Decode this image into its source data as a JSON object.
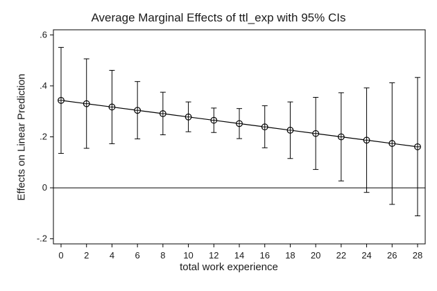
{
  "chart_data": {
    "type": "line",
    "title": "Average Marginal Effects of ttl_exp with 95% CIs",
    "xlabel": "total work experience",
    "ylabel": "Effects on Linear Prediction",
    "x": [
      0,
      2,
      4,
      6,
      8,
      10,
      12,
      14,
      16,
      18,
      20,
      22,
      24,
      26,
      28
    ],
    "series": [
      {
        "estimate": [
          0.343,
          0.33,
          0.317,
          0.304,
          0.291,
          0.278,
          0.265,
          0.252,
          0.239,
          0.226,
          0.213,
          0.2,
          0.187,
          0.174,
          0.161
        ],
        "ci_lower": [
          0.135,
          0.155,
          0.173,
          0.192,
          0.208,
          0.22,
          0.217,
          0.193,
          0.157,
          0.115,
          0.072,
          0.027,
          -0.018,
          -0.065,
          -0.11
        ],
        "ci_upper": [
          0.551,
          0.506,
          0.461,
          0.417,
          0.375,
          0.337,
          0.313,
          0.311,
          0.322,
          0.337,
          0.355,
          0.373,
          0.392,
          0.412,
          0.433
        ]
      }
    ],
    "xticks": [
      "0",
      "2",
      "4",
      "6",
      "8",
      "10",
      "12",
      "14",
      "16",
      "18",
      "20",
      "22",
      "24",
      "26",
      "28"
    ],
    "yticks": [
      -0.2,
      0,
      0.2,
      0.4,
      0.6
    ],
    "ytick_labels": [
      "-.2",
      "0",
      ".2",
      ".4",
      ".6"
    ],
    "xlim": [
      -0.6,
      28.6
    ],
    "ylim": [
      -0.22,
      0.62
    ],
    "reference_line_y": 0,
    "colors": {
      "line": "#000000",
      "marker": "#000000",
      "axis": "#000000",
      "background": "#ffffff"
    }
  }
}
